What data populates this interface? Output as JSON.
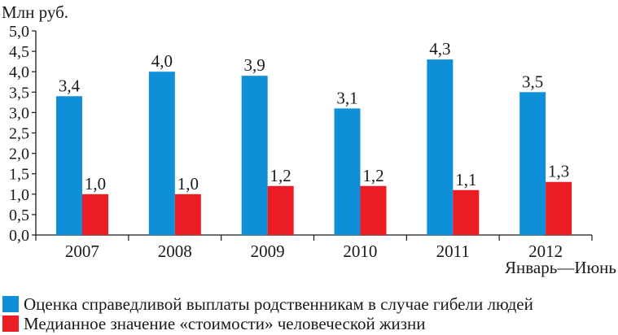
{
  "chart_data": {
    "type": "bar",
    "ylabel": "Млн руб.",
    "xnote": "Январь—Июнь",
    "ylim": [
      0,
      5
    ],
    "yticks": [
      "0,0",
      "0,5",
      "1,0",
      "1,5",
      "2,0",
      "2,5",
      "3,0",
      "3,5",
      "4,0",
      "4,5",
      "5,0"
    ],
    "categories": [
      "2007",
      "2008",
      "2009",
      "2010",
      "2011",
      "2012"
    ],
    "series": [
      {
        "name": "Оценка справедливой выплаты родственникам в случае гибели людей",
        "color": "#0f8fd8",
        "values": [
          3.4,
          4.0,
          3.9,
          3.1,
          4.3,
          3.5
        ],
        "labels": [
          "3,4",
          "4,0",
          "3,9",
          "3,1",
          "4,3",
          "3,5"
        ]
      },
      {
        "name": "Медианное значение «стоимости» человеческой жизни",
        "color": "#ec1c24",
        "values": [
          1.0,
          1.0,
          1.2,
          1.2,
          1.1,
          1.3
        ],
        "labels": [
          "1,0",
          "1,0",
          "1,2",
          "1,2",
          "1,1",
          "1,3"
        ]
      }
    ],
    "legend": "bottom",
    "grid": false
  }
}
